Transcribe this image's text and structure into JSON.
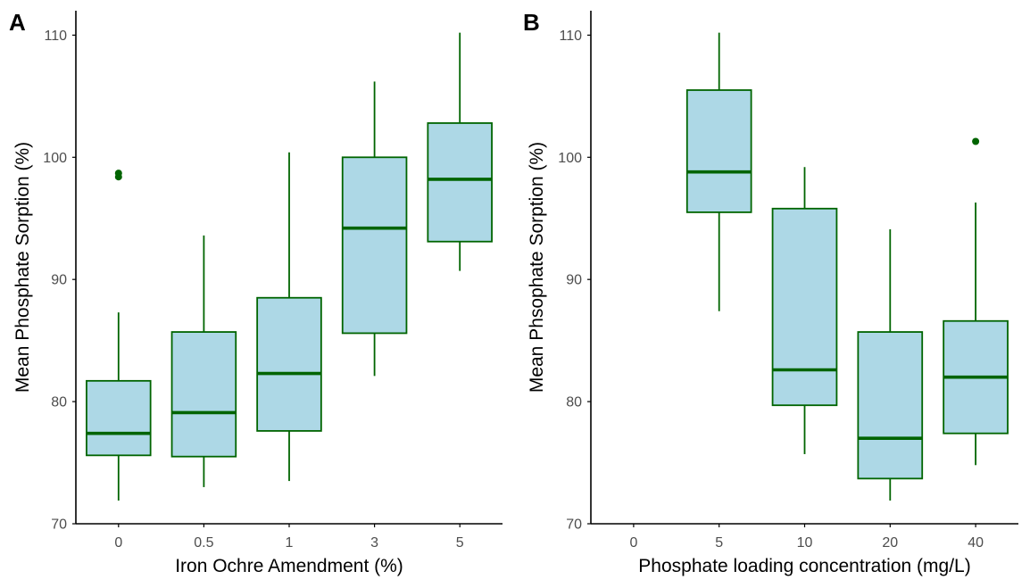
{
  "chart_data": [
    {
      "type": "box",
      "panel_label": "A",
      "xlabel": "Iron Ochre Amendment (%)",
      "ylabel": "Mean Phosphate Sorption (%)",
      "categories": [
        "0",
        "0.5",
        "1",
        "3",
        "5"
      ],
      "ylim": [
        70,
        112
      ],
      "yticks": [
        70,
        80,
        90,
        100,
        110
      ],
      "ytick_labels": [
        "70",
        "80",
        "90",
        "100",
        "110"
      ],
      "grid": false,
      "boxes": [
        {
          "min": 71.9,
          "q1": 75.6,
          "median": 77.4,
          "q3": 81.7,
          "max": 87.3,
          "outliers": [
            98.4,
            98.7
          ]
        },
        {
          "min": 73.0,
          "q1": 75.5,
          "median": 79.1,
          "q3": 85.7,
          "max": 93.6,
          "outliers": []
        },
        {
          "min": 73.5,
          "q1": 77.6,
          "median": 82.3,
          "q3": 88.5,
          "max": 100.4,
          "outliers": []
        },
        {
          "min": 82.1,
          "q1": 85.6,
          "median": 94.2,
          "q3": 100.0,
          "max": 106.2,
          "outliers": []
        },
        {
          "min": 90.7,
          "q1": 93.1,
          "median": 98.2,
          "q3": 102.8,
          "max": 110.2,
          "outliers": []
        }
      ]
    },
    {
      "type": "box",
      "panel_label": "B",
      "xlabel": "Phosphate loading concentration (mg/L)",
      "ylabel": "Mean Phsophate Sorption (%)",
      "categories": [
        "0",
        "5",
        "10",
        "20",
        "40"
      ],
      "ylim": [
        70,
        112
      ],
      "yticks": [
        70,
        80,
        90,
        100,
        110
      ],
      "ytick_labels": [
        "70",
        "80",
        "90",
        "100",
        "110"
      ],
      "grid": false,
      "boxes": [
        null,
        {
          "min": 87.4,
          "q1": 95.5,
          "median": 98.8,
          "q3": 105.5,
          "max": 110.2,
          "outliers": []
        },
        {
          "min": 75.7,
          "q1": 79.7,
          "median": 82.6,
          "q3": 95.8,
          "max": 99.2,
          "outliers": []
        },
        {
          "min": 71.9,
          "q1": 73.7,
          "median": 77.0,
          "q3": 85.7,
          "max": 94.1,
          "outliers": []
        },
        {
          "min": 74.8,
          "q1": 77.4,
          "median": 82.0,
          "q3": 86.6,
          "max": 96.3,
          "outliers": [
            101.3
          ]
        }
      ]
    }
  ],
  "colors": {
    "box_fill": "#add8e6",
    "box_line": "#006400",
    "axis": "#000000",
    "tick_text": "#4d4d4d",
    "title_text": "#000000"
  }
}
